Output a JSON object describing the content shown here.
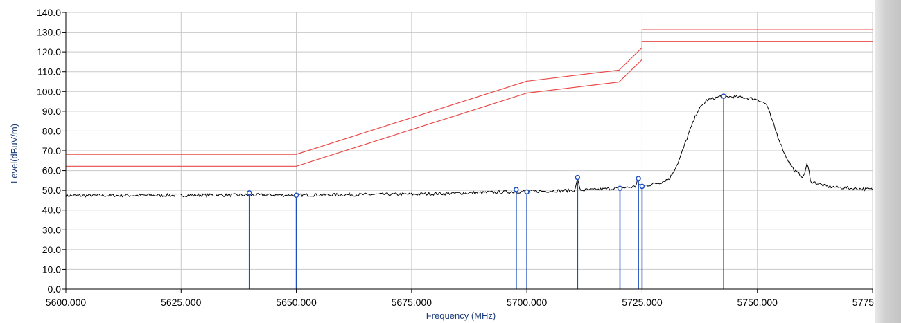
{
  "chart_data": {
    "type": "line",
    "title": "",
    "xlabel": "Frequency (MHz)",
    "ylabel": "Level(dBuV/m)",
    "xlim": [
      5600,
      5775
    ],
    "ylim": [
      0,
      140
    ],
    "grid": true,
    "x_ticks": [
      "5600.000",
      "5625.000",
      "5650.000",
      "5675.000",
      "5700.000",
      "5725.000",
      "5750.000",
      "5775.000"
    ],
    "y_ticks": [
      "0.0",
      "10.0",
      "20.0",
      "30.0",
      "40.0",
      "50.0",
      "60.0",
      "70.0",
      "80.0",
      "90.0",
      "100.0",
      "110.0",
      "120.0",
      "130.0",
      "140.0"
    ],
    "series": [
      {
        "color": "#e84a4a",
        "points": [
          [
            5600,
            68.2
          ],
          [
            5650,
            68.2
          ],
          [
            5700,
            105.2
          ],
          [
            5720,
            110.8
          ],
          [
            5725,
            122.2
          ],
          [
            5725,
            131.2
          ],
          [
            5775,
            131.2
          ]
        ]
      },
      {
        "color": "#e84a4a",
        "points": [
          [
            5600,
            62.2
          ],
          [
            5650,
            62.2
          ],
          [
            5700,
            99.2
          ],
          [
            5720,
            104.8
          ],
          [
            5725,
            116.2
          ],
          [
            5725,
            125.2
          ],
          [
            5775,
            125.2
          ]
        ]
      },
      {
        "color": "#000000",
        "noisy": true,
        "points": [
          [
            5600,
            47.3
          ],
          [
            5625,
            47.5
          ],
          [
            5650,
            47.6
          ],
          [
            5675,
            48.0
          ],
          [
            5690,
            48.8
          ],
          [
            5700,
            49.4
          ],
          [
            5710,
            50.0
          ],
          [
            5715,
            50.3
          ],
          [
            5722,
            51.5
          ],
          [
            5726,
            52.5
          ],
          [
            5729,
            54.0
          ],
          [
            5731,
            56.0
          ],
          [
            5733,
            65.0
          ],
          [
            5735,
            78.0
          ],
          [
            5737,
            90.0
          ],
          [
            5739,
            95.5
          ],
          [
            5742,
            97.5
          ],
          [
            5747,
            97.0
          ],
          [
            5750,
            96.0
          ],
          [
            5752,
            93.5
          ],
          [
            5754,
            80.0
          ],
          [
            5756,
            68.0
          ],
          [
            5758,
            60.0
          ],
          [
            5761,
            55.0
          ],
          [
            5765,
            52.0
          ],
          [
            5770,
            51.0
          ],
          [
            5775,
            50.5
          ]
        ],
        "spikes": [
          [
            5711,
            56.0
          ],
          [
            5724,
            55.5
          ],
          [
            5760.8,
            64.0
          ]
        ]
      }
    ],
    "markers": [
      {
        "x": 5639.8,
        "y": 48.7
      },
      {
        "x": 5650.0,
        "y": 47.5
      },
      {
        "x": 5697.7,
        "y": 50.4
      },
      {
        "x": 5700.0,
        "y": 49.2
      },
      {
        "x": 5711.0,
        "y": 56.5
      },
      {
        "x": 5720.2,
        "y": 51.0
      },
      {
        "x": 5724.2,
        "y": 56.0
      },
      {
        "x": 5725.0,
        "y": 52.0
      },
      {
        "x": 5742.7,
        "y": 97.6
      }
    ],
    "colors": {
      "limit": "#e84a4a",
      "trace": "#000000",
      "marker": "#1f4fbf",
      "grid": "#c9c9c9"
    }
  }
}
